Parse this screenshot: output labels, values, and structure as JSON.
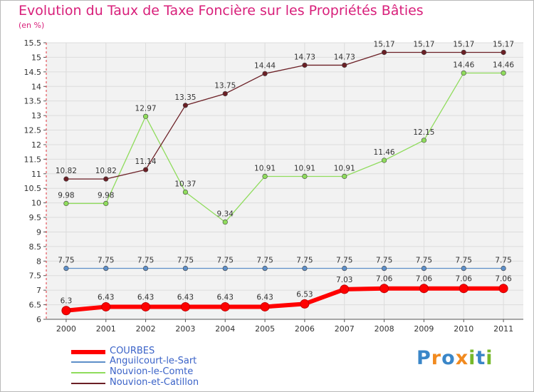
{
  "chart_data": {
    "type": "line",
    "title": "Evolution du Taux de Taxe Foncière sur les Propriétés Bâties",
    "ylabel": "(en %)",
    "xlabel": "",
    "ylim": [
      6,
      15.5
    ],
    "ytick_step": 0.5,
    "yticks": [
      "6",
      "6.5",
      "7",
      "7.5",
      "8",
      "8.5",
      "9",
      "9.5",
      "10",
      "10.5",
      "11",
      "11.5",
      "12",
      "12.5",
      "13",
      "13.5",
      "14",
      "14.5",
      "15",
      "15.5"
    ],
    "categories": [
      "2000",
      "2001",
      "2002",
      "2003",
      "2004",
      "2005",
      "2006",
      "2007",
      "2008",
      "2009",
      "2010",
      "2011"
    ],
    "grid": true,
    "series": [
      {
        "name": "COURBES",
        "color": "#ff0000",
        "values": [
          6.3,
          6.43,
          6.43,
          6.43,
          6.43,
          6.43,
          6.53,
          7.03,
          7.06,
          7.06,
          7.06,
          7.06
        ],
        "labels": [
          "6.3",
          "6.43",
          "6.43",
          "6.43",
          "6.43",
          "6.43",
          "6.53",
          "7.03",
          "7.06",
          "7.06",
          "7.06",
          "7.06"
        ]
      },
      {
        "name": "Anguilcourt-le-Sart",
        "color": "#5d8fc9",
        "values": [
          7.75,
          7.75,
          7.75,
          7.75,
          7.75,
          7.75,
          7.75,
          7.75,
          7.75,
          7.75,
          7.75,
          7.75
        ],
        "labels": [
          "7.75",
          "7.75",
          "7.75",
          "7.75",
          "7.75",
          "7.75",
          "7.75",
          "7.75",
          "7.75",
          "7.75",
          "7.75",
          "7.75"
        ]
      },
      {
        "name": "Nouvion-le-Comte",
        "color": "#8fdc5c",
        "values": [
          9.98,
          9.98,
          12.97,
          10.37,
          9.34,
          10.91,
          10.91,
          10.91,
          11.46,
          12.15,
          14.46,
          14.46
        ],
        "labels": [
          "9.98",
          "9.98",
          "12.97",
          "10.37",
          "9.34",
          "10.91",
          "10.91",
          "10.91",
          "11.46",
          "12.15",
          "14.46",
          "14.46"
        ]
      },
      {
        "name": "Nouvion-et-Catillon",
        "color": "#6b1f25",
        "values": [
          10.82,
          10.82,
          11.14,
          13.35,
          13.75,
          14.44,
          14.73,
          14.73,
          15.17,
          15.17,
          15.17,
          15.17
        ],
        "labels": [
          "10.82",
          "10.82",
          "11.14",
          "13.35",
          "13.75",
          "14.44",
          "14.73",
          "14.73",
          "15.17",
          "15.17",
          "15.17",
          "15.17"
        ]
      }
    ],
    "legend_position": "bottom-left"
  },
  "brand": {
    "letters": [
      "P",
      "r",
      "o",
      "x",
      "i",
      "t",
      "i"
    ],
    "colors": [
      "#3a86c8",
      "#f18a1f",
      "#3a86c8",
      "#f18a1f",
      "#76b82a",
      "#3a86c8",
      "#76b82a"
    ]
  }
}
